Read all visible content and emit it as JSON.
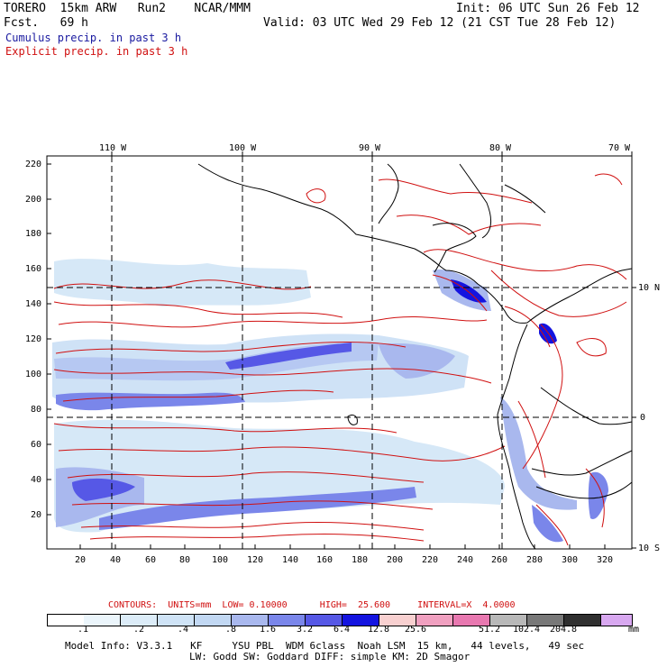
{
  "header": {
    "model_line": "TORERO  15km ARW   Run2    NCAR/MMM",
    "fcst_line": "Fcst.   69 h",
    "init_line": "Init: 06 UTC Sun 26 Feb 12",
    "valid_line": "Valid: 03 UTC Wed 29 Feb 12 (21 CST Tue 28 Feb 12)",
    "legend_cumulus": "Cumulus precip. in past 3 h",
    "legend_explicit": "Explicit precip. in past 3 h",
    "color_cumulus": "#1a1aa0",
    "color_explicit": "#d01010"
  },
  "map": {
    "top_lon_labels": [
      "110 W",
      "100 W",
      "90 W",
      "80 W",
      "70 W"
    ],
    "right_lat_labels": [
      "10 N",
      "0",
      "10 S"
    ],
    "y_ticks": [
      "220",
      "200",
      "180",
      "160",
      "140",
      "120",
      "100",
      "80",
      "60",
      "40",
      "20"
    ],
    "x_ticks": [
      "20",
      "40",
      "60",
      "80",
      "100",
      "120",
      "140",
      "160",
      "180",
      "200",
      "220",
      "240",
      "260",
      "280",
      "300",
      "320"
    ]
  },
  "colorbar": {
    "contours_text": "CONTOURS:  UNITS=mm  LOW= 0.10000      HIGH=  25.600     INTERVAL=X  4.0000",
    "labels": [
      ".1",
      ".2",
      ".4",
      ".8",
      "1.6",
      "3.2",
      "6.4",
      "12.8",
      "25.6",
      "51.2",
      "102.4",
      "204.8"
    ],
    "units": "mm",
    "colors": [
      "#ffffff",
      "#ebf5fb",
      "#dcecf8",
      "#cfe3f6",
      "#c2d8f3",
      "#a9b8ee",
      "#7a86ea",
      "#5658e6",
      "#1414e0",
      "#f8d0d0",
      "#f0a0c0",
      "#e878b0",
      "#b8b8b8",
      "#787878",
      "#303030",
      "#d8a8f0"
    ]
  },
  "footer": {
    "line1": "Model Info: V3.3.1   KF     YSU PBL  WDM 6class  Noah LSM  15 km,   44 levels,   49 sec",
    "line2": "LW: Godd SW: Goddard DIFF: simple KM: 2D Smagor"
  }
}
